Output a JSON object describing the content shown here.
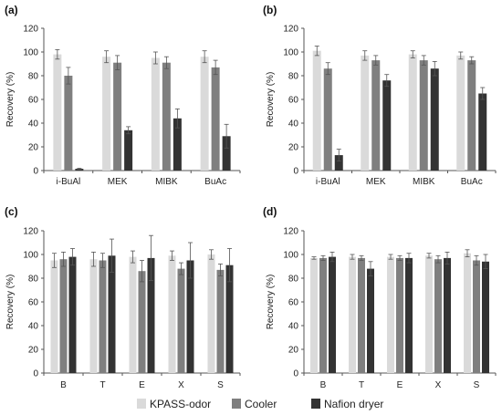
{
  "chart_data": [
    {
      "type": "bar",
      "panel_label": "(a)",
      "categories": [
        "i-BuAl",
        "MEK",
        "MIBK",
        "BuAc"
      ],
      "ylabel": "Recovery (%)",
      "ylim": [
        0,
        120
      ],
      "yticks": [
        0,
        20,
        40,
        60,
        80,
        100,
        120
      ],
      "series": [
        {
          "name": "KPASS-odor",
          "values": [
            98,
            96,
            95,
            96
          ],
          "errors": [
            4,
            5,
            5,
            5
          ]
        },
        {
          "name": "Cooler",
          "values": [
            80,
            91,
            91,
            87
          ],
          "errors": [
            7,
            6,
            5,
            6
          ]
        },
        {
          "name": "Nafion dryer",
          "values": [
            1.5,
            34,
            44,
            29
          ],
          "errors": [
            0.5,
            3,
            8,
            10
          ]
        }
      ]
    },
    {
      "type": "bar",
      "panel_label": "(b)",
      "categories": [
        "i-BuAl",
        "MEK",
        "MIBK",
        "BuAc"
      ],
      "ylabel": "Recovery (%)",
      "ylim": [
        0,
        120
      ],
      "yticks": [
        0,
        20,
        40,
        60,
        80,
        100,
        120
      ],
      "series": [
        {
          "name": "KPASS-odor",
          "values": [
            101,
            97,
            98,
            97
          ],
          "errors": [
            4,
            4,
            3,
            3
          ]
        },
        {
          "name": "Cooler",
          "values": [
            86,
            93,
            93,
            93
          ],
          "errors": [
            5,
            4,
            4,
            3
          ]
        },
        {
          "name": "Nafion dryer",
          "values": [
            13,
            76,
            86,
            65
          ],
          "errors": [
            5,
            5,
            6,
            5
          ]
        }
      ]
    },
    {
      "type": "bar",
      "panel_label": "(c)",
      "categories": [
        "B",
        "T",
        "E",
        "X",
        "S"
      ],
      "ylabel": "Recovery (%)",
      "ylim": [
        0,
        120
      ],
      "yticks": [
        0,
        20,
        40,
        60,
        80,
        100,
        120
      ],
      "series": [
        {
          "name": "KPASS-odor",
          "values": [
            95,
            96,
            98,
            99,
            100
          ],
          "errors": [
            6,
            6,
            5,
            4,
            4
          ]
        },
        {
          "name": "Cooler",
          "values": [
            96,
            95,
            86,
            88,
            87
          ],
          "errors": [
            6,
            6,
            9,
            5,
            5
          ]
        },
        {
          "name": "Nafion dryer",
          "values": [
            98,
            99,
            97,
            95,
            91
          ],
          "errors": [
            7,
            14,
            19,
            15,
            14
          ]
        }
      ]
    },
    {
      "type": "bar",
      "panel_label": "(d)",
      "categories": [
        "B",
        "T",
        "E",
        "X",
        "S"
      ],
      "ylabel": "Recovery (%)",
      "ylim": [
        0,
        120
      ],
      "yticks": [
        0,
        20,
        40,
        60,
        80,
        100,
        120
      ],
      "series": [
        {
          "name": "KPASS-odor",
          "values": [
            97,
            98,
            98,
            99,
            101
          ],
          "errors": [
            1,
            2,
            2,
            2,
            3
          ]
        },
        {
          "name": "Cooler",
          "values": [
            97,
            97,
            97,
            96,
            95
          ],
          "errors": [
            2,
            2,
            2,
            3,
            4
          ]
        },
        {
          "name": "Nafion dryer",
          "values": [
            98,
            88,
            97,
            97,
            94
          ],
          "errors": [
            4,
            6,
            4,
            5,
            6
          ]
        }
      ]
    }
  ],
  "legend": {
    "items": [
      {
        "label": "KPASS-odor",
        "color": "#dadada"
      },
      {
        "label": "Cooler",
        "color": "#7f7f7f"
      },
      {
        "label": "Nafion dryer",
        "color": "#333333"
      }
    ]
  },
  "colors": {
    "series": [
      "#dadada",
      "#7f7f7f",
      "#333333"
    ],
    "axis": "#555555",
    "error_bar": "#555555"
  }
}
